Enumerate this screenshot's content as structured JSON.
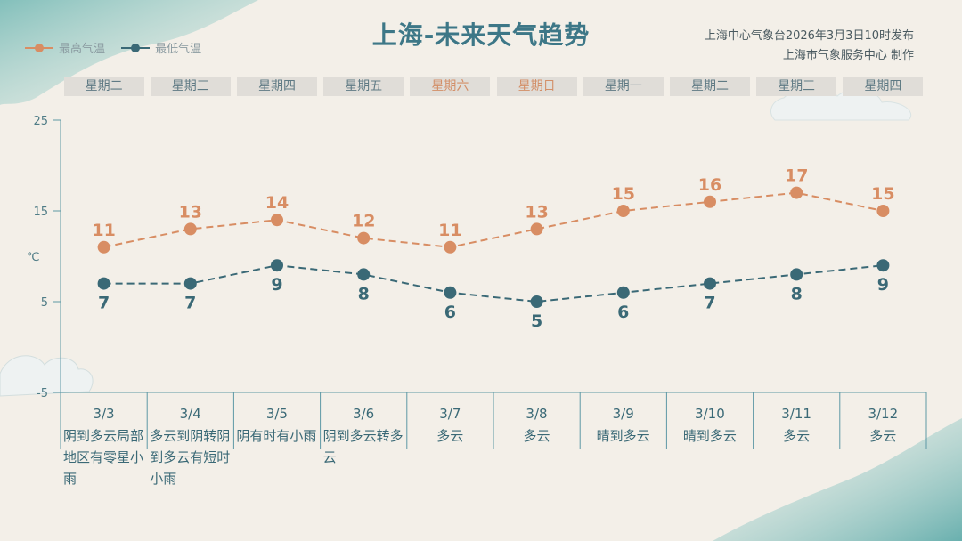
{
  "header": {
    "title": "上海-未来天气趋势",
    "issuer_line1": "上海中心气象台2026年3月3日10时发布",
    "issuer_line2": "上海市气象服务中心 制作"
  },
  "legend": {
    "high_label": "最高气温",
    "low_label": "最低气温"
  },
  "colors": {
    "high": "#d88d63",
    "low": "#3a6976",
    "axis": "#5d98a5",
    "weekend_text": "#d38f68",
    "title": "#3d7787"
  },
  "chart_data": {
    "type": "line",
    "title": "上海-未来天气趋势",
    "ylabel": "℃",
    "ylim": [
      -5,
      25
    ],
    "yticks": [
      25,
      15,
      5,
      -5
    ],
    "weekdays": [
      "星期二",
      "星期三",
      "星期四",
      "星期五",
      "星期六",
      "星期日",
      "星期一",
      "星期二",
      "星期三",
      "星期四"
    ],
    "weekend_flags": [
      false,
      false,
      false,
      false,
      true,
      true,
      false,
      false,
      false,
      false
    ],
    "categories": [
      "3/3",
      "3/4",
      "3/5",
      "3/6",
      "3/7",
      "3/8",
      "3/9",
      "3/10",
      "3/11",
      "3/12"
    ],
    "series": [
      {
        "name": "最高气温",
        "values": [
          11,
          13,
          14,
          12,
          11,
          13,
          15,
          16,
          17,
          15
        ]
      },
      {
        "name": "最低气温",
        "values": [
          7,
          7,
          9,
          8,
          6,
          5,
          6,
          7,
          8,
          9
        ]
      }
    ],
    "weather": [
      "阴到多云局部地区有零星小雨",
      "多云到阴转阴到多云有短时小雨",
      "阴有时有小雨",
      "阴到多云转多云",
      "多云",
      "多云",
      "晴到多云",
      "晴到多云",
      "多云",
      "多云"
    ],
    "legend_position": "top-left",
    "grid": false
  }
}
